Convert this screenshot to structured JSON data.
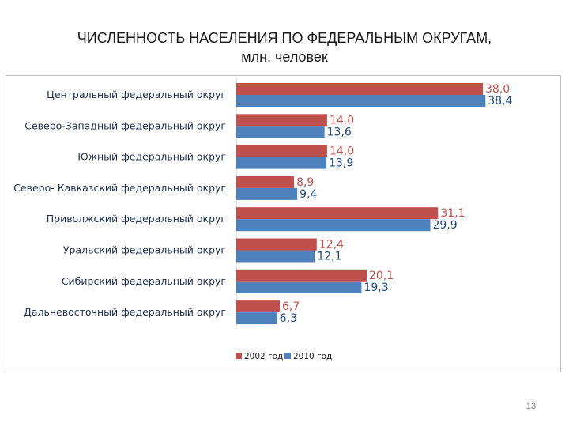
{
  "slide": {
    "title_line1": "ЧИСЛЕННОСТЬ НАСЕЛЕНИЯ ПО ФЕДЕРАЛЬНЫМ ОКРУГАМ,",
    "title_line2": "млн. человек",
    "page_number": "13"
  },
  "chart_data": {
    "type": "bar",
    "orientation": "horizontal",
    "categories": [
      "Центральный федеральный округ",
      "Северо-Западный федеральный округ",
      "Южный федеральный округ",
      "Северо- Кавказский федеральный округ",
      "Приволжский федеральный округ",
      "Уральский федеральный округ",
      "Сибирский федеральный округ",
      "Дальневосточный федеральный округ"
    ],
    "series": [
      {
        "name": "2002 год",
        "color": "#c0504d",
        "values": [
          38.0,
          14.0,
          14.0,
          8.9,
          31.1,
          12.4,
          20.1,
          6.7
        ],
        "labels": [
          "38,0",
          "14,0",
          "14,0",
          "8,9",
          "31,1",
          "12,4",
          "20,1",
          "6,7"
        ]
      },
      {
        "name": "2010 год",
        "color": "#4f81bd",
        "values": [
          38.4,
          13.6,
          13.9,
          9.4,
          29.9,
          12.1,
          19.3,
          6.3
        ],
        "labels": [
          "38,4",
          "13,6",
          "13,9",
          "9,4",
          "29,9",
          "12,1",
          "19,3",
          "6,3"
        ]
      }
    ],
    "xlim": [
      0,
      40
    ],
    "grid": false,
    "legend_position": "bottom"
  }
}
